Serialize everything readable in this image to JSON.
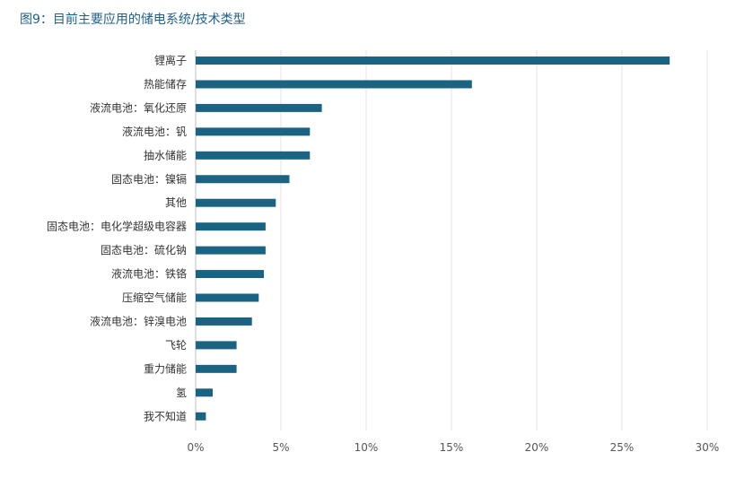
{
  "title": "图9：目前主要应用的储电系统/技术类型",
  "chart_data": {
    "type": "bar",
    "orientation": "horizontal",
    "title": "图9：目前主要应用的储电系统/技术类型",
    "xlabel": "",
    "ylabel": "",
    "categories": [
      "锂离子",
      "热能储存",
      "液流电池：氧化还原",
      "液流电池：钒",
      "抽水储能",
      "固态电池：镍镉",
      "其他",
      "固态电池：电化学超级电容器",
      "固态电池：硫化钠",
      "液流电池：铁铬",
      "压缩空气储能",
      "液流电池：锌溴电池",
      "飞轮",
      "重力储能",
      "氢",
      "我不知道"
    ],
    "values": [
      27.8,
      16.2,
      7.4,
      6.7,
      6.7,
      5.5,
      4.7,
      4.1,
      4.1,
      4.0,
      3.7,
      3.3,
      2.4,
      2.4,
      1.0,
      0.6
    ],
    "xlim": [
      0,
      30
    ],
    "xticks": [
      "0%",
      "5%",
      "10%",
      "15%",
      "20%",
      "25%",
      "30%"
    ],
    "xtick_values": [
      0,
      5,
      10,
      15,
      20,
      25,
      30
    ],
    "grid": "vertical",
    "bar_color": "#1a6383",
    "legend": "none"
  }
}
